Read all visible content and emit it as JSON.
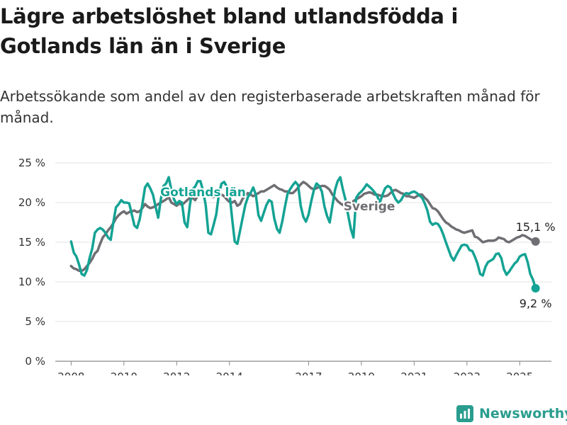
{
  "chart_data": {
    "type": "line",
    "title": "Lägre arbetslöshet bland utlandsfödda i Gotlands län än i Sverige",
    "subtitle": "Arbetssökande som andel av den registerbaserade arbetskraften månad för månad.",
    "ylim": [
      0,
      25
    ],
    "y_ticks": [
      0,
      5,
      10,
      15,
      20,
      25
    ],
    "y_tick_labels": [
      "0 %",
      "5 %",
      "10 %",
      "15 %",
      "20 %",
      "25 %"
    ],
    "x_ticks": [
      2008,
      2010,
      2012,
      2014,
      2017,
      2019,
      2021,
      2023,
      2025
    ],
    "grid": "horizontal",
    "series": [
      {
        "name": "Gotlands län",
        "color": "#14a394",
        "end_label": "9,2 %",
        "x": [
          2008.0,
          2008.1,
          2008.2,
          2008.3,
          2008.4,
          2008.5,
          2008.6,
          2008.7,
          2008.8,
          2008.9,
          2009.0,
          2009.1,
          2009.2,
          2009.3,
          2009.4,
          2009.5,
          2009.6,
          2009.7,
          2009.8,
          2009.9,
          2010.0,
          2010.1,
          2010.2,
          2010.3,
          2010.4,
          2010.5,
          2010.6,
          2010.7,
          2010.8,
          2010.9,
          2011.0,
          2011.1,
          2011.2,
          2011.3,
          2011.4,
          2011.5,
          2011.6,
          2011.7,
          2011.8,
          2011.9,
          2012.0,
          2012.1,
          2012.2,
          2012.3,
          2012.4,
          2012.5,
          2012.6,
          2012.7,
          2012.8,
          2012.9,
          2013.0,
          2013.1,
          2013.2,
          2013.3,
          2013.4,
          2013.5,
          2013.6,
          2013.7,
          2013.8,
          2013.9,
          2014.0,
          2014.1,
          2014.2,
          2014.3,
          2014.4,
          2014.5,
          2014.6,
          2014.7,
          2014.8,
          2014.9,
          2015.0,
          2015.1,
          2015.2,
          2015.3,
          2015.4,
          2015.5,
          2015.6,
          2015.7,
          2015.8,
          2015.9,
          2016.0,
          2016.1,
          2016.2,
          2016.3,
          2016.4,
          2016.5,
          2016.6,
          2016.7,
          2016.8,
          2016.9,
          2017.0,
          2017.1,
          2017.2,
          2017.3,
          2017.4,
          2017.5,
          2017.6,
          2017.7,
          2017.8,
          2017.9,
          2018.0,
          2018.1,
          2018.2,
          2018.3,
          2018.4,
          2018.5,
          2018.6,
          2018.7,
          2018.8,
          2018.9,
          2019.0,
          2019.1,
          2019.2,
          2019.3,
          2019.4,
          2019.5,
          2019.6,
          2019.7,
          2019.8,
          2019.9,
          2020.0,
          2020.1,
          2020.2,
          2020.3,
          2020.4,
          2020.5,
          2020.6,
          2020.7,
          2020.8,
          2020.9,
          2021.0,
          2021.1,
          2021.2,
          2021.3,
          2021.4,
          2021.5,
          2021.6,
          2021.7,
          2021.8,
          2021.9,
          2022.0,
          2022.1,
          2022.2,
          2022.3,
          2022.4,
          2022.5,
          2022.6,
          2022.7,
          2022.8,
          2022.9,
          2023.0,
          2023.1,
          2023.2,
          2023.3,
          2023.4,
          2023.5,
          2023.6,
          2023.7,
          2023.8,
          2023.9,
          2024.0,
          2024.1,
          2024.2,
          2024.3,
          2024.4,
          2024.5,
          2024.6,
          2024.7,
          2024.8,
          2024.9,
          2025.0,
          2025.1,
          2025.2,
          2025.3,
          2025.4,
          2025.5,
          2025.6
        ],
        "values": [
          15.1,
          13.7,
          13.2,
          12.2,
          11.0,
          10.8,
          11.5,
          13.0,
          14.2,
          16.2,
          16.6,
          16.8,
          16.6,
          16.2,
          15.6,
          15.3,
          17.5,
          19.4,
          19.8,
          20.3,
          20.0,
          20.0,
          19.9,
          18.5,
          17.1,
          16.8,
          17.9,
          19.8,
          21.9,
          22.4,
          21.8,
          21.0,
          19.5,
          18.1,
          20.4,
          22.1,
          22.4,
          23.2,
          21.6,
          20.4,
          19.8,
          20.2,
          20.0,
          17.5,
          16.9,
          19.7,
          21.7,
          22.0,
          22.7,
          22.7,
          21.5,
          19.7,
          16.2,
          16.0,
          17.2,
          18.5,
          21.1,
          22.4,
          22.6,
          22.0,
          21.3,
          18.0,
          15.1,
          14.8,
          16.4,
          18.1,
          19.7,
          20.7,
          21.2,
          21.9,
          21.0,
          18.4,
          17.7,
          18.7,
          19.7,
          20.3,
          20.1,
          18.0,
          16.7,
          16.2,
          17.6,
          19.4,
          21.1,
          21.7,
          22.2,
          22.6,
          22.2,
          19.6,
          18.2,
          17.6,
          18.5,
          20.2,
          21.6,
          22.4,
          22.1,
          21.4,
          19.5,
          18.3,
          17.5,
          19.6,
          21.6,
          22.7,
          23.2,
          21.6,
          20.3,
          18.4,
          16.7,
          15.6,
          20.6,
          21.1,
          21.4,
          21.8,
          22.3,
          22.0,
          21.7,
          21.3,
          20.8,
          20.0,
          21.0,
          21.8,
          22.1,
          21.9,
          21.1,
          20.4,
          20.0,
          20.3,
          20.9,
          21.2,
          21.1,
          21.3,
          21.4,
          21.2,
          20.9,
          20.6,
          19.9,
          19.0,
          17.6,
          17.2,
          17.4,
          17.3,
          16.8,
          16.0,
          15.0,
          14.1,
          13.2,
          12.7,
          13.4,
          14.0,
          14.6,
          14.7,
          14.6,
          14.0,
          13.9,
          13.2,
          12.3,
          11.0,
          10.8,
          11.9,
          12.5,
          12.7,
          12.9,
          13.5,
          13.6,
          13.0,
          11.6,
          10.9,
          11.3,
          11.8,
          12.3,
          12.6,
          13.2,
          13.4,
          13.5,
          12.5,
          11.0,
          10.3,
          9.2
        ]
      },
      {
        "name": "Sverige",
        "color": "#6e6e73",
        "end_label": "15,1 %",
        "x": [
          2008.0,
          2008.1,
          2008.2,
          2008.3,
          2008.4,
          2008.5,
          2008.6,
          2008.7,
          2008.8,
          2008.9,
          2009.0,
          2009.1,
          2009.2,
          2009.3,
          2009.4,
          2009.5,
          2009.6,
          2009.7,
          2009.8,
          2009.9,
          2010.0,
          2010.1,
          2010.2,
          2010.3,
          2010.4,
          2010.5,
          2010.6,
          2010.7,
          2010.8,
          2010.9,
          2011.0,
          2011.1,
          2011.2,
          2011.3,
          2011.4,
          2011.5,
          2011.6,
          2011.7,
          2011.8,
          2011.9,
          2012.0,
          2012.1,
          2012.2,
          2012.3,
          2012.4,
          2012.5,
          2012.6,
          2012.7,
          2012.8,
          2012.9,
          2013.0,
          2013.1,
          2013.2,
          2013.3,
          2013.4,
          2013.5,
          2013.6,
          2013.7,
          2013.8,
          2013.9,
          2014.0,
          2014.1,
          2014.2,
          2014.3,
          2014.4,
          2014.5,
          2014.6,
          2014.7,
          2014.8,
          2014.9,
          2015.0,
          2015.1,
          2015.2,
          2015.3,
          2015.4,
          2015.5,
          2015.6,
          2015.7,
          2015.8,
          2015.9,
          2016.0,
          2016.1,
          2016.2,
          2016.3,
          2016.4,
          2016.5,
          2016.6,
          2016.7,
          2016.8,
          2016.9,
          2017.0,
          2017.1,
          2017.2,
          2017.3,
          2017.4,
          2017.5,
          2017.6,
          2017.7,
          2017.8,
          2017.9,
          2018.0,
          2018.1,
          2018.2,
          2018.3,
          2018.4,
          2018.5,
          2018.6,
          2018.7,
          2018.8,
          2018.9,
          2019.0,
          2019.1,
          2019.2,
          2019.3,
          2019.4,
          2019.5,
          2019.6,
          2019.7,
          2019.8,
          2019.9,
          2020.0,
          2020.1,
          2020.2,
          2020.3,
          2020.4,
          2020.5,
          2020.6,
          2020.7,
          2020.8,
          2020.9,
          2021.0,
          2021.1,
          2021.2,
          2021.3,
          2021.4,
          2021.5,
          2021.6,
          2021.7,
          2021.8,
          2021.9,
          2022.0,
          2022.1,
          2022.2,
          2022.3,
          2022.4,
          2022.5,
          2022.6,
          2022.7,
          2022.8,
          2022.9,
          2023.0,
          2023.1,
          2023.2,
          2023.3,
          2023.4,
          2023.5,
          2023.6,
          2023.7,
          2023.8,
          2023.9,
          2024.0,
          2024.1,
          2024.2,
          2024.3,
          2024.4,
          2024.5,
          2024.6,
          2024.7,
          2024.8,
          2024.9,
          2025.0,
          2025.1,
          2025.2,
          2025.3,
          2025.4,
          2025.5,
          2025.6
        ],
        "values": [
          12.0,
          11.7,
          11.6,
          11.4,
          11.4,
          11.6,
          12.0,
          12.4,
          12.9,
          13.6,
          13.9,
          14.8,
          15.6,
          16.0,
          16.5,
          16.9,
          17.4,
          18.0,
          18.4,
          18.7,
          18.9,
          18.6,
          18.8,
          18.9,
          19.0,
          18.8,
          18.9,
          19.3,
          19.8,
          19.5,
          19.3,
          19.4,
          19.6,
          19.8,
          20.0,
          20.2,
          20.4,
          20.7,
          20.0,
          19.8,
          19.6,
          19.9,
          19.7,
          20.0,
          20.3,
          20.6,
          20.6,
          20.3,
          20.9,
          21.1,
          21.2,
          21.4,
          21.0,
          20.8,
          20.7,
          20.9,
          21.1,
          21.0,
          20.8,
          20.4,
          20.1,
          20.0,
          20.2,
          19.6,
          19.8,
          20.5,
          20.9,
          21.2,
          21.0,
          20.8,
          21.0,
          21.2,
          21.4,
          21.4,
          21.6,
          21.8,
          22.0,
          22.2,
          21.9,
          21.7,
          21.6,
          21.4,
          21.4,
          21.2,
          21.2,
          21.5,
          21.9,
          22.3,
          22.6,
          22.4,
          22.1,
          21.8,
          21.7,
          21.8,
          22.0,
          22.1,
          22.1,
          21.9,
          21.6,
          21.0,
          20.6,
          20.2,
          19.9,
          19.7,
          19.6,
          19.7,
          19.9,
          20.2,
          20.4,
          20.6,
          20.8,
          21.1,
          21.2,
          21.3,
          21.2,
          21.0,
          21.0,
          20.9,
          20.8,
          20.8,
          20.9,
          21.2,
          21.5,
          21.6,
          21.4,
          21.2,
          21.1,
          20.8,
          20.8,
          20.7,
          20.6,
          20.8,
          21.0,
          21.0,
          20.6,
          20.3,
          19.8,
          19.3,
          19.2,
          18.9,
          18.4,
          17.9,
          17.5,
          17.3,
          17.0,
          16.8,
          16.6,
          16.5,
          16.3,
          16.2,
          16.3,
          16.4,
          16.5,
          15.7,
          15.6,
          15.3,
          15.0,
          15.1,
          15.2,
          15.2,
          15.2,
          15.3,
          15.6,
          15.5,
          15.4,
          15.1,
          15.0,
          15.2,
          15.4,
          15.6,
          15.7,
          15.9,
          15.8,
          15.6,
          15.4,
          15.2,
          15.1
        ]
      }
    ]
  },
  "footer": {
    "brand": "Newsworthy"
  }
}
